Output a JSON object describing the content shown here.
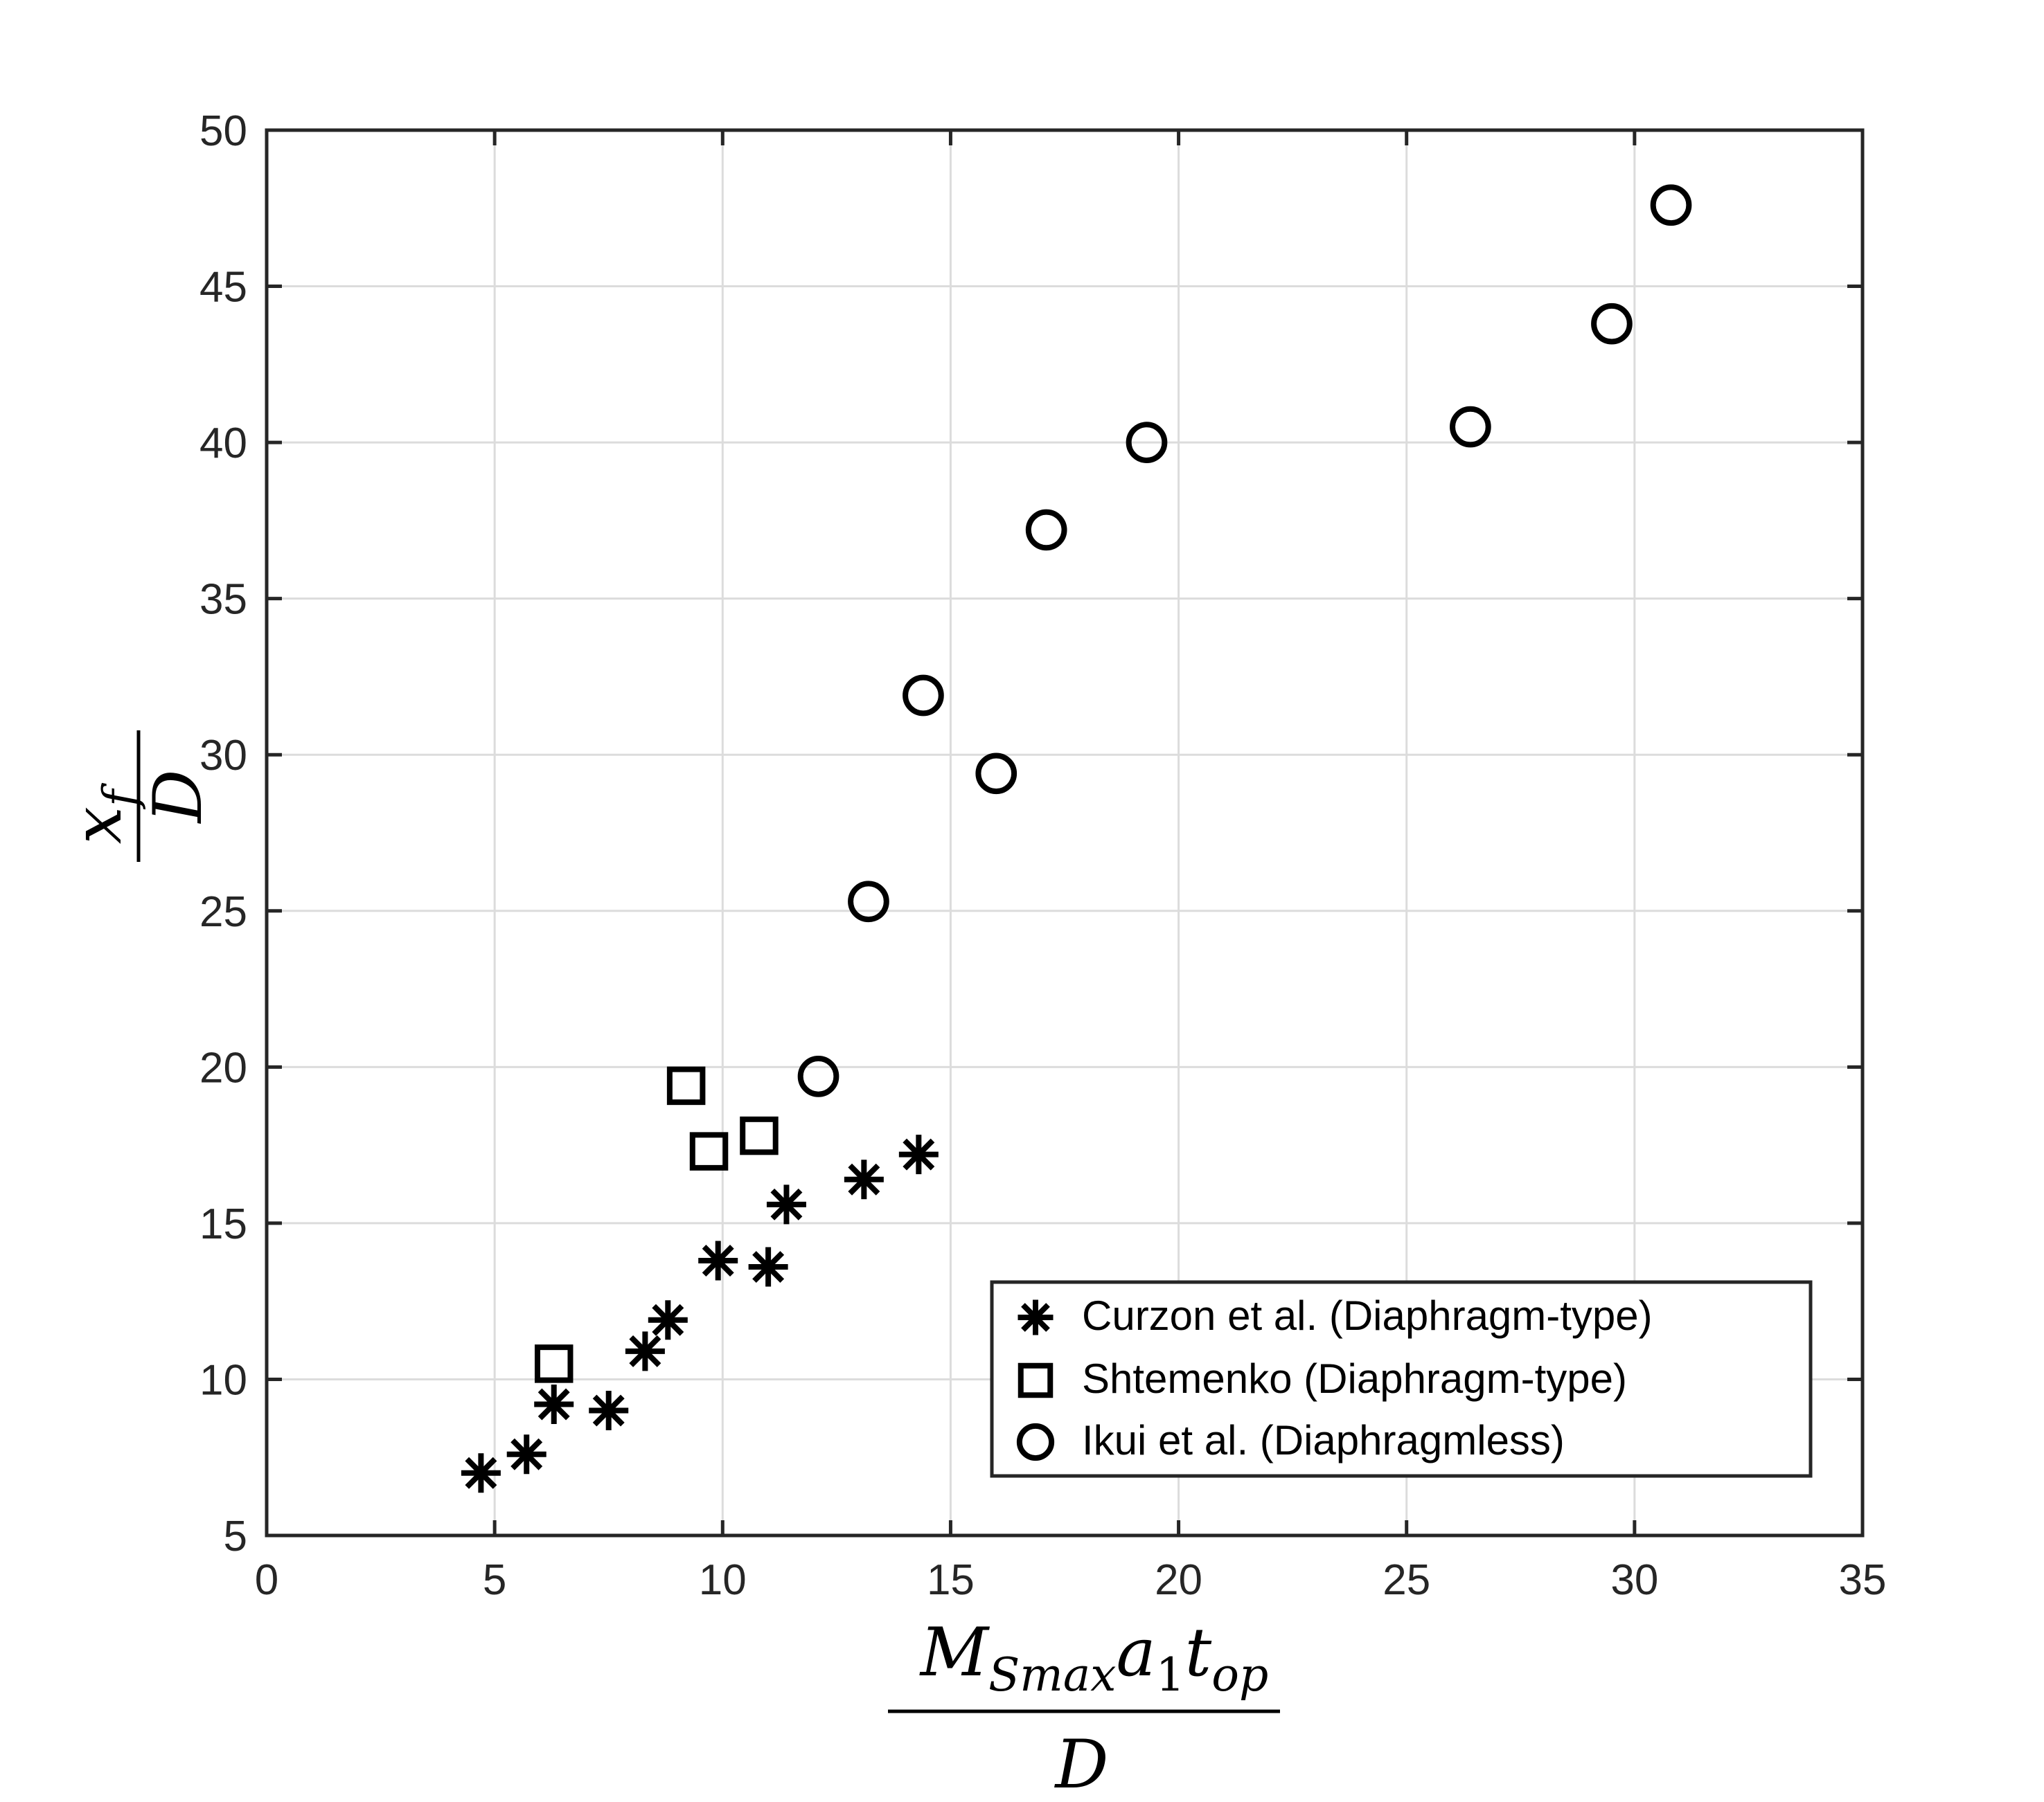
{
  "chart_data": {
    "type": "scatter",
    "xlim": [
      0,
      35
    ],
    "ylim": [
      5,
      50
    ],
    "xticks": [
      0,
      5,
      10,
      15,
      20,
      25,
      30,
      35
    ],
    "yticks": [
      5,
      10,
      15,
      20,
      25,
      30,
      35,
      40,
      45,
      50
    ],
    "grid": true,
    "legend_position": "bottom-right",
    "xlabel": {
      "numerator_M": "M",
      "numerator_M_sub": "Smax",
      "numerator_a": "a",
      "numerator_a_sub": "1",
      "numerator_t": "t",
      "numerator_t_sub": "op",
      "denominator": "D"
    },
    "ylabel": {
      "numerator": "x",
      "numerator_sub": "f",
      "denominator": "D"
    },
    "series": [
      {
        "name": "Curzon et al. (Diaphragm-type)",
        "marker": "asterisk",
        "color": "#000000",
        "x": [
          4.7,
          5.7,
          6.3,
          7.5,
          8.3,
          8.8,
          9.9,
          11.0,
          11.4,
          13.1,
          14.3
        ],
        "y": [
          7.0,
          7.6,
          9.2,
          9.0,
          10.9,
          11.9,
          13.8,
          13.6,
          15.6,
          16.4,
          17.2
        ]
      },
      {
        "name": "Shtemenko (Diaphragm-type)",
        "marker": "square",
        "color": "#000000",
        "x": [
          6.3,
          9.2,
          9.7,
          10.8
        ],
        "y": [
          10.5,
          19.4,
          17.3,
          17.8
        ]
      },
      {
        "name": "Ikui et al. (Diaphragmless)",
        "marker": "circle",
        "color": "#000000",
        "x": [
          12.1,
          13.2,
          14.4,
          16.0,
          17.1,
          19.3,
          26.4,
          29.5,
          30.8
        ],
        "y": [
          19.7,
          25.3,
          31.9,
          29.4,
          37.2,
          40.0,
          40.5,
          43.8,
          47.6
        ]
      }
    ]
  }
}
